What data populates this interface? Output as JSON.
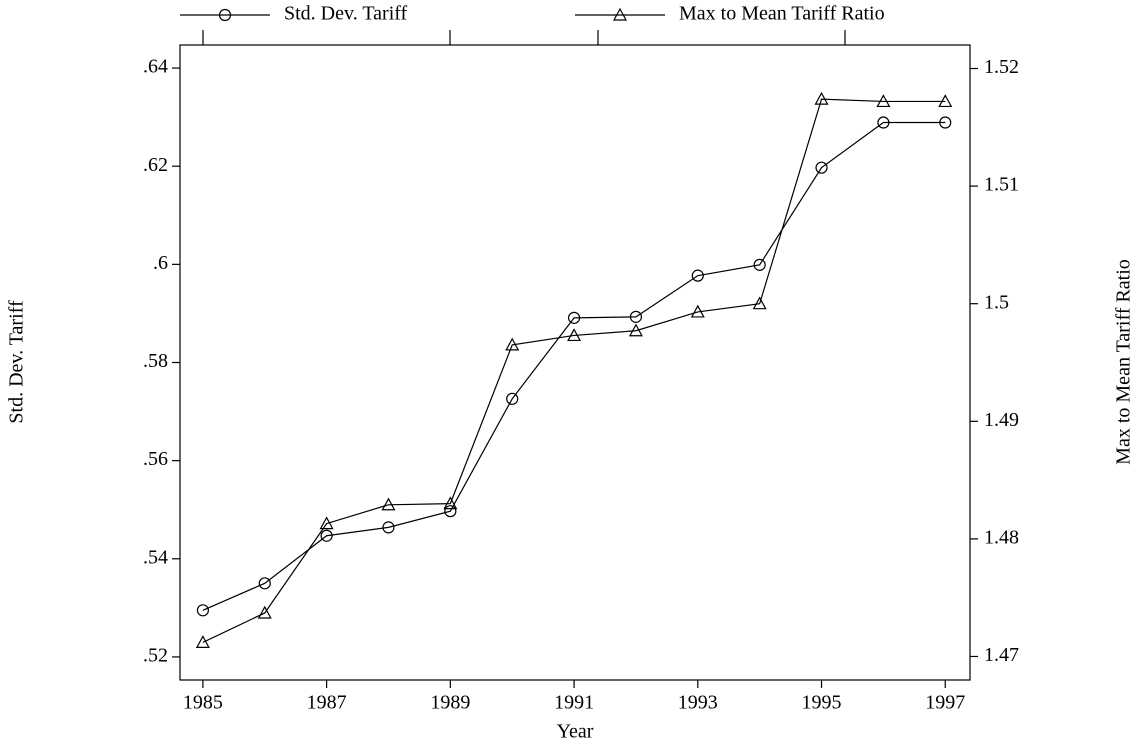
{
  "chart_data": {
    "type": "line",
    "x_label": "Year",
    "y_label": "Std. Dev. Tariff",
    "y2_label": "Max to Mean Tariff Ratio",
    "x": [
      1985,
      1986,
      1987,
      1988,
      1989,
      1990,
      1991,
      1992,
      1993,
      1994,
      1995,
      1996,
      1997
    ],
    "series": [
      {
        "name": "Std. Dev. Tariff",
        "color": "#000000",
        "marker": "circle",
        "values": [
          0.5295,
          0.535,
          0.5447,
          0.5464,
          0.5497,
          0.5726,
          0.5891,
          0.5893,
          0.5977,
          0.5999,
          0.6197,
          0.6289,
          0.6289
        ]
      },
      {
        "name": "Max to Mean Tariff Ratio",
        "color": "#000000",
        "marker": "triangle",
        "axis": "y2",
        "values": [
          1.4712,
          1.4737,
          1.4813,
          1.4829,
          1.483,
          1.4965,
          1.4973,
          1.4977,
          1.4993,
          1.5,
          1.5174,
          1.5172,
          1.5172
        ]
      }
    ],
    "xlim": [
      1984.63,
      1997.4
    ],
    "xticks": [
      1985,
      1987,
      1989,
      1991,
      1993,
      1995,
      1997
    ],
    "ylim": [
      0.5153,
      0.6447
    ],
    "yticks": [
      {
        "value": 0.52,
        "label": ".52"
      },
      {
        "value": 0.54,
        "label": ".54"
      },
      {
        "value": 0.56,
        "label": ".56"
      },
      {
        "value": 0.58,
        "label": ".58"
      },
      {
        "value": 0.6,
        "label": ".6"
      },
      {
        "value": 0.62,
        "label": ".62"
      },
      {
        "value": 0.64,
        "label": ".64"
      }
    ],
    "y2lim": [
      1.468,
      1.522
    ],
    "y2ticks": [
      1.47,
      1.48,
      1.49,
      1.5,
      1.51,
      1.52
    ],
    "legend": "top"
  }
}
